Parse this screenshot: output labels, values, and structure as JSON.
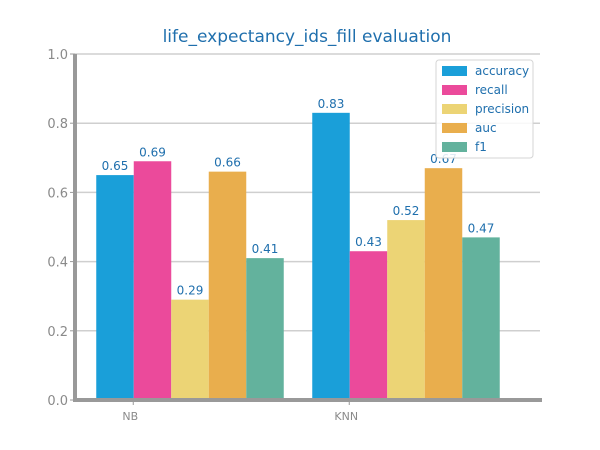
{
  "chart_data": {
    "type": "bar",
    "title": "life_expectancy_ids_fill evaluation",
    "xlabel": "",
    "ylabel": "",
    "categories": [
      "NB",
      "KNN"
    ],
    "ylim": [
      0,
      1.0
    ],
    "yticks": [
      "0.0",
      "0.2",
      "0.4",
      "0.6",
      "0.8",
      "1.0"
    ],
    "grid": "horizontal",
    "legend_position": "top-right",
    "series": [
      {
        "name": "accuracy",
        "color": "#1a9fd9",
        "values": [
          0.65,
          0.83
        ],
        "labels": [
          "0.65",
          "0.83"
        ]
      },
      {
        "name": "recall",
        "color": "#eb4a9b",
        "values": [
          0.69,
          0.43
        ],
        "labels": [
          "0.69",
          "0.43"
        ]
      },
      {
        "name": "precision",
        "color": "#ecd475",
        "values": [
          0.29,
          0.52
        ],
        "labels": [
          "0.29",
          "0.52"
        ]
      },
      {
        "name": "auc",
        "color": "#e9ae4d",
        "values": [
          0.66,
          0.67
        ],
        "labels": [
          "0.66",
          "0.67"
        ]
      },
      {
        "name": "f1",
        "color": "#63b29d",
        "values": [
          0.41,
          0.47
        ],
        "labels": [
          "0.41",
          "0.47"
        ]
      }
    ]
  }
}
